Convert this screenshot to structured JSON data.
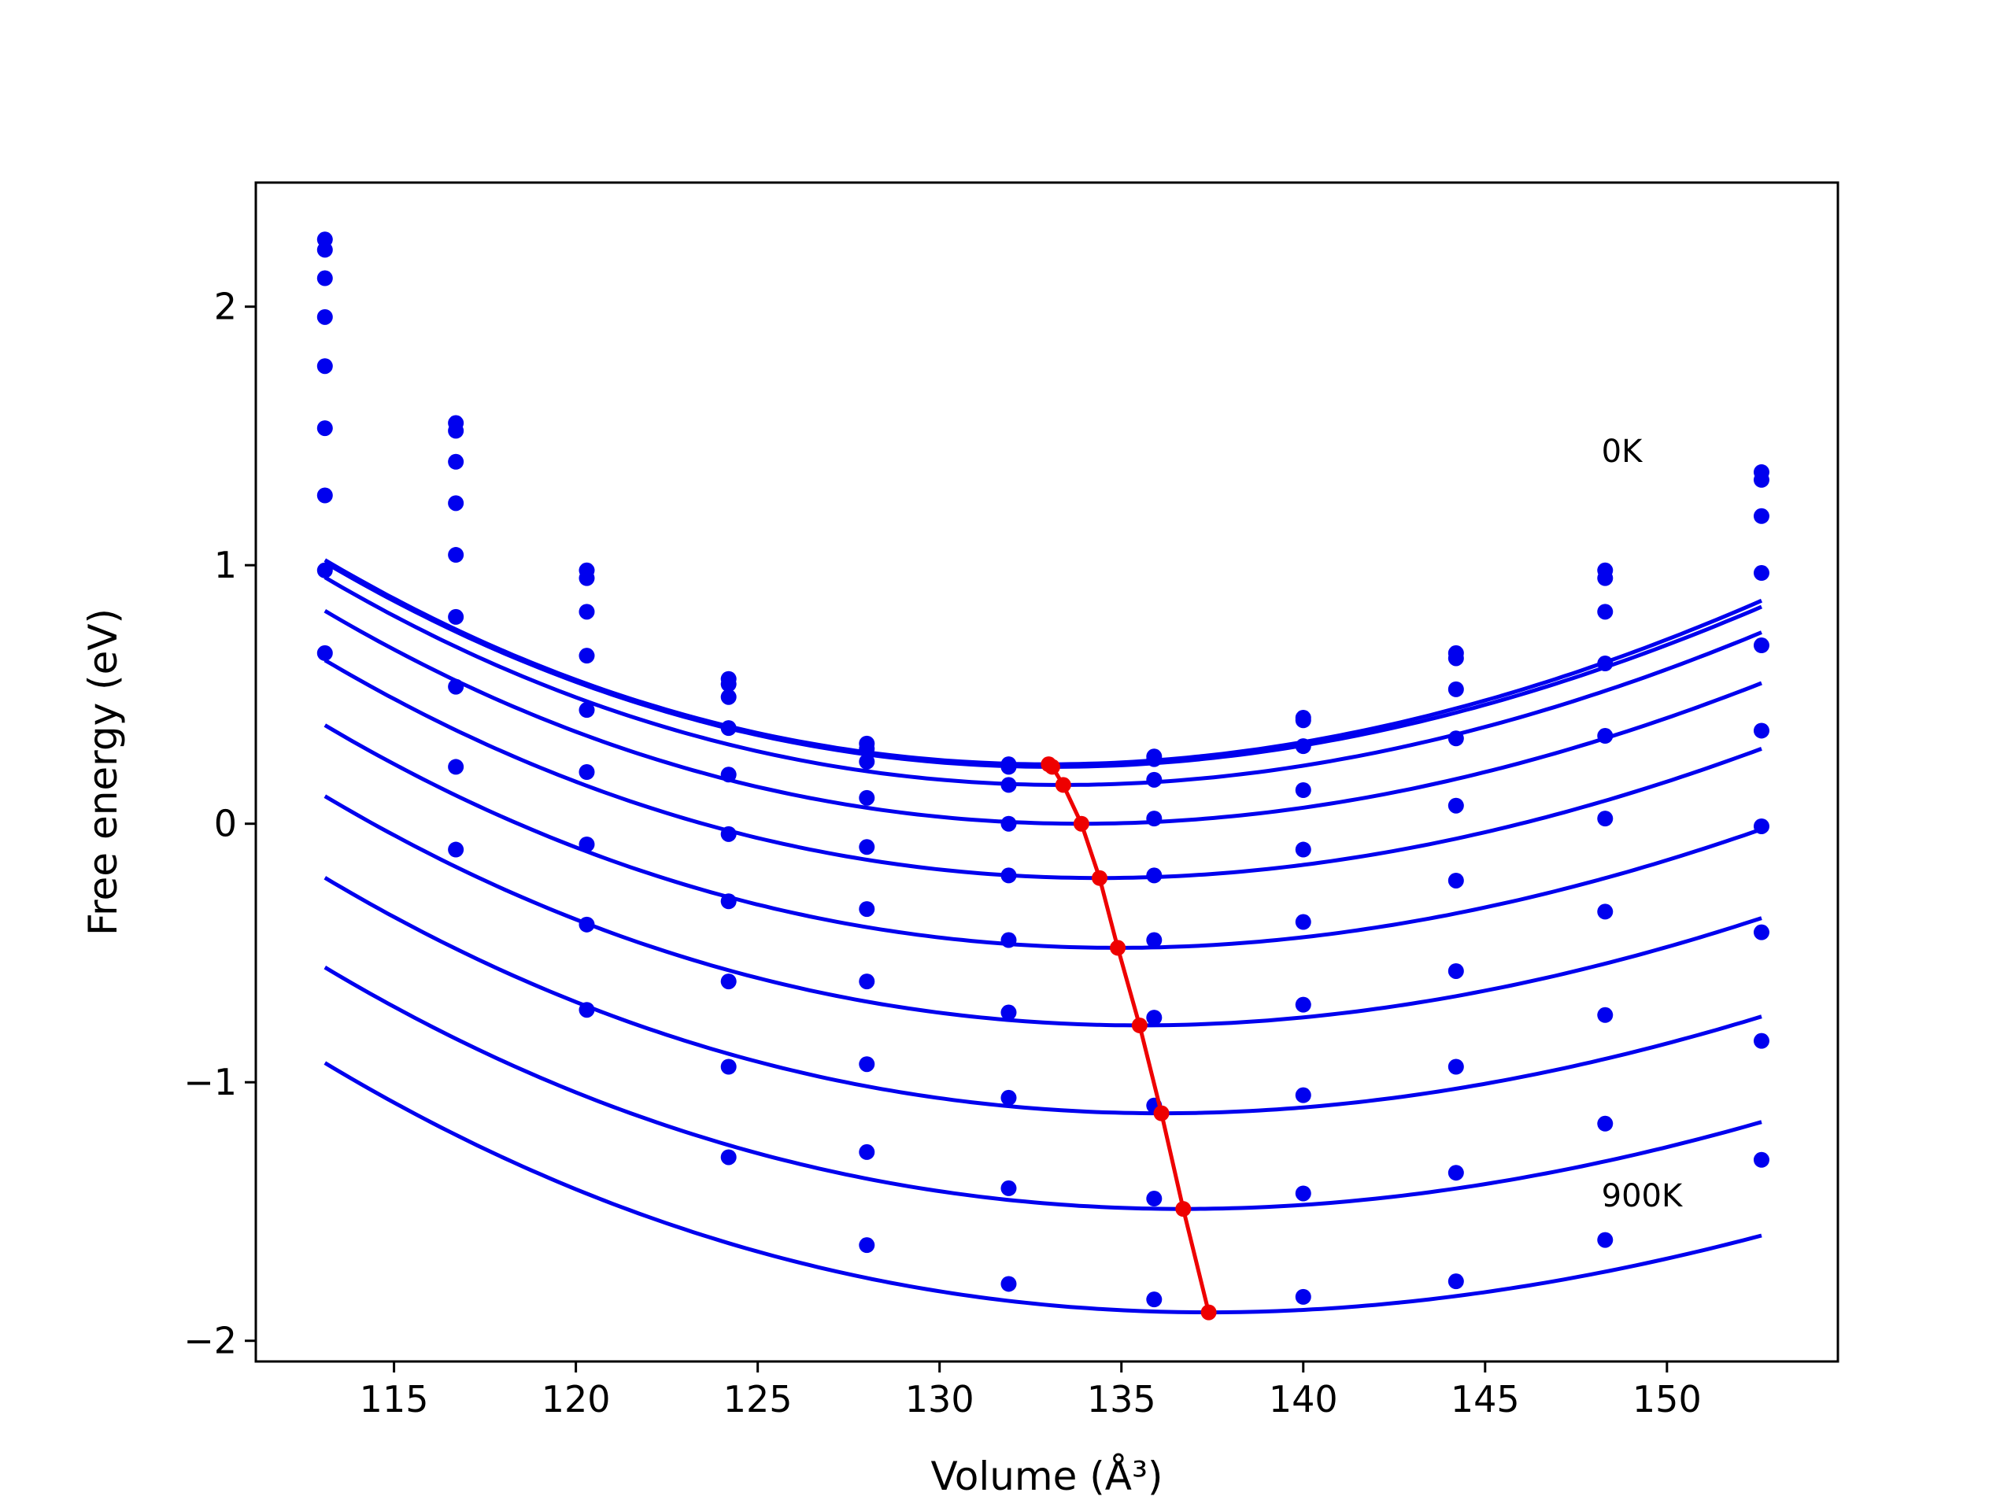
{
  "chart_data": {
    "type": "line",
    "title": "",
    "xlabel": "Volume (Å³)",
    "ylabel": "Free energy (eV)",
    "xlim": [
      111.2,
      154.7
    ],
    "ylim": [
      -2.08,
      2.48
    ],
    "xticks": [
      "115",
      "120",
      "125",
      "130",
      "135",
      "140",
      "145",
      "150"
    ],
    "yticks": [
      "−2",
      "−1",
      "0",
      "1",
      "2"
    ],
    "grid": false,
    "legend": "none",
    "colors": {
      "curves": "#0000ee",
      "points": "#0000ee",
      "minima": "#ee0000",
      "frame": "#000000"
    },
    "annotations": [
      {
        "text": "0K",
        "x": 148.2,
        "y": 1.4
      },
      {
        "text": "900K",
        "x": 148.2,
        "y": -1.48
      }
    ],
    "x": [
      113.1,
      116.7,
      120.3,
      124.2,
      128.0,
      131.9,
      135.9,
      140.0,
      144.2,
      148.3,
      152.6
    ],
    "series": [
      {
        "values": [
          2.26,
          1.55,
          0.98,
          0.56,
          0.31,
          0.23,
          0.26,
          0.41,
          0.66,
          0.98,
          1.36
        ],
        "fit": {
          "v0": 133.0,
          "e0": 0.23,
          "a": 0.00182,
          "b": 8.8e-06
        }
      },
      {
        "values": [
          2.22,
          1.52,
          0.95,
          0.54,
          0.29,
          0.22,
          0.25,
          0.4,
          0.64,
          0.95,
          1.33
        ],
        "fit": {
          "v0": 133.1,
          "e0": 0.22,
          "a": 0.0018,
          "b": 8.8e-06
        }
      },
      {
        "values": [
          2.11,
          1.4,
          0.82,
          0.49,
          0.24,
          0.15,
          0.17,
          0.3,
          0.52,
          0.82,
          1.19
        ],
        "fit": {
          "v0": 133.4,
          "e0": 0.15,
          "a": 0.00177,
          "b": 8.8e-06
        }
      },
      {
        "values": [
          1.96,
          1.24,
          0.65,
          0.37,
          0.1,
          0.0,
          0.02,
          0.13,
          0.33,
          0.62,
          0.97
        ],
        "fit": {
          "v0": 133.9,
          "e0": 0.0,
          "a": 0.00172,
          "b": 8.8e-06
        }
      },
      {
        "values": [
          1.77,
          1.04,
          0.44,
          0.19,
          -0.09,
          -0.2,
          -0.2,
          -0.1,
          0.07,
          0.34,
          0.69
        ],
        "fit": {
          "v0": 134.4,
          "e0": -0.21,
          "a": 0.00167,
          "b": 8.8e-06
        }
      },
      {
        "values": [
          1.53,
          0.8,
          0.2,
          -0.04,
          -0.33,
          -0.45,
          -0.45,
          -0.38,
          -0.22,
          0.02,
          0.36
        ],
        "fit": {
          "v0": 134.9,
          "e0": -0.48,
          "a": 0.00162,
          "b": 8.8e-06
        }
      },
      {
        "values": [
          1.27,
          0.53,
          -0.08,
          -0.3,
          -0.61,
          -0.73,
          -0.75,
          -0.7,
          -0.57,
          -0.34,
          -0.01
        ],
        "fit": {
          "v0": 135.5,
          "e0": -0.78,
          "a": 0.00157,
          "b": 8.8e-06
        }
      },
      {
        "values": [
          0.98,
          0.22,
          -0.39,
          -0.61,
          -0.93,
          -1.06,
          -1.09,
          -1.05,
          -0.94,
          -0.74,
          -0.42
        ],
        "fit": {
          "v0": 136.1,
          "e0": -1.12,
          "a": 0.00152,
          "b": 8.8e-06
        }
      },
      {
        "values": [
          0.66,
          -0.1,
          -0.72,
          -0.94,
          -1.27,
          -1.41,
          -1.45,
          -1.43,
          -1.35,
          -1.16,
          -0.84
        ],
        "fit": {
          "v0": 136.7,
          "e0": -1.49,
          "a": 0.00147,
          "b": 8.8e-06
        }
      },
      {
        "values": [
          null,
          null,
          null,
          -1.29,
          -1.63,
          -1.78,
          -1.84,
          -1.83,
          -1.77,
          -1.61,
          -1.3
        ],
        "fit": {
          "v0": 137.4,
          "e0": -1.89,
          "a": 0.00142,
          "b": 8.8e-06
        }
      }
    ],
    "minima": {
      "x": [
        133.0,
        133.1,
        133.4,
        133.9,
        134.4,
        134.9,
        135.5,
        136.1,
        136.7,
        137.4
      ],
      "y": [
        0.23,
        0.22,
        0.15,
        0.0,
        -0.21,
        -0.48,
        -0.78,
        -1.12,
        -1.49,
        -1.89
      ]
    }
  }
}
